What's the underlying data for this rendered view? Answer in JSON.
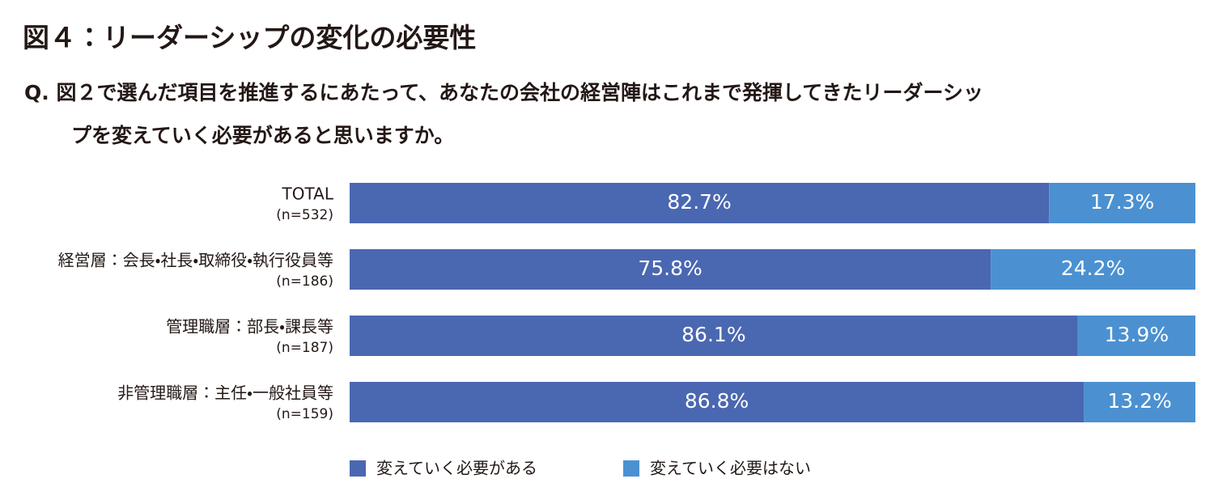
{
  "chart_data": {
    "type": "stacked_barh",
    "title": "図４：リーダーシップの変化の必要性",
    "question": [
      "Q. 図２で選んだ項目を推進するにあたって、あなたの会社の経営陣はこれまで発揮してきたリーダーシッ",
      "プを変えていく必要があると思いますか。"
    ],
    "categories": [
      "TOTAL",
      "経営層：会長・社長・取締役・執行役員等",
      "管理職層：部長・課長等",
      "非管理職層：主任・一般社員等"
    ],
    "sample_sizes": [
      "(n=532)",
      "(n=186)",
      "(n=187)",
      "(n=159)"
    ],
    "series": [
      {
        "name": "変えていく必要がある",
        "color": "#4a67b1",
        "values": [
          82.7,
          75.8,
          86.1,
          86.8
        ],
        "value_labels": [
          "82.7%",
          "75.8%",
          "86.1%",
          "86.8%"
        ]
      },
      {
        "name": "変えていく必要はない",
        "color": "#4b91d1",
        "values": [
          17.3,
          24.2,
          13.9,
          13.2
        ],
        "value_labels": [
          "17.3%",
          "24.2%",
          "13.9%",
          "13.2%"
        ]
      }
    ],
    "legend": "bottom"
  }
}
